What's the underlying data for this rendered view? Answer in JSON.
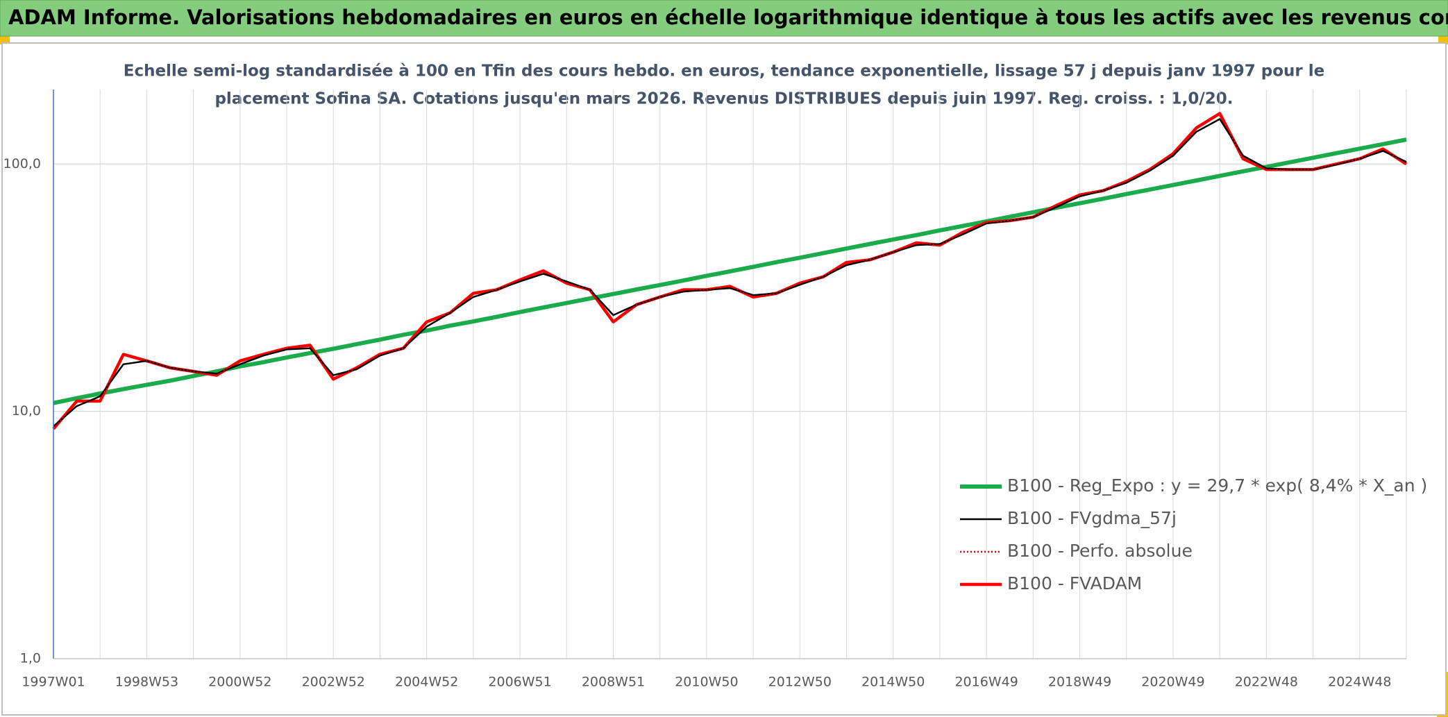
{
  "chart_data": {
    "type": "line",
    "title": "ADAM Informe. Valorisations hebdomadaires en euros en échelle logarithmique identique à tous les actifs avec les revenus connus distribués",
    "subtitle": [
      "Echelle semi-log standardisée à 100 en Tfin des cours hebdo. en euros, tendance exponentielle, lissage 57 j depuis janv 1997 pour le",
      "placement Sofina SA. Cotations jusqu'en mars 2026. Revenus DISTRIBUES depuis juin 1997. Reg. croiss. : 1,0/20."
    ],
    "categories": [
      "1997W01",
      null,
      null,
      null,
      "1998W53",
      null,
      null,
      null,
      "2000W52",
      null,
      null,
      null,
      "2002W52",
      null,
      null,
      null,
      "2004W52",
      null,
      null,
      null,
      "2006W51",
      null,
      null,
      null,
      "2008W51",
      null,
      null,
      null,
      "2010W50",
      null,
      null,
      null,
      "2012W50",
      null,
      null,
      null,
      "2014W50",
      null,
      null,
      null,
      "2016W49",
      null,
      null,
      null,
      "2018W49",
      null,
      null,
      null,
      "2020W49",
      null,
      null,
      null,
      "2022W48",
      null,
      null,
      null,
      "2024W48",
      null,
      null
    ],
    "series": [
      {
        "name": "B100 - Reg_Expo : y = 29,7 * exp( 8,4% *  X_an )",
        "color": "#1aab4b",
        "line_style": "solid",
        "values": [
          10.8,
          11.3,
          11.8,
          12.3,
          12.8,
          13.3,
          13.9,
          14.5,
          15.2,
          15.8,
          16.5,
          17.2,
          17.9,
          18.7,
          19.5,
          20.4,
          21.2,
          22.2,
          23.1,
          24.1,
          25.2,
          26.3,
          27.4,
          28.6,
          29.8,
          31.1,
          32.4,
          33.8,
          35.3,
          36.8,
          38.4,
          40.1,
          41.8,
          43.6,
          45.5,
          47.5,
          49.5,
          51.6,
          53.9,
          56.2,
          58.6,
          61.2,
          63.8,
          66.6,
          69.4,
          72.4,
          75.6,
          78.8,
          82.2,
          85.8,
          89.5,
          93.4,
          97.4,
          101.6,
          106.0,
          110.6,
          115.3,
          120.3,
          125.5
        ]
      },
      {
        "name": "B100 - FVgdma_57j",
        "color": "#000000",
        "line_style": "solid",
        "values": [
          8.7,
          10.5,
          11.5,
          15.5,
          16,
          15,
          14.5,
          14.2,
          15.5,
          16.8,
          17.8,
          18,
          14,
          14.8,
          16.8,
          18,
          22,
          25,
          29,
          31,
          33.5,
          36,
          33.5,
          31,
          24.5,
          27,
          29,
          30.5,
          31,
          31.5,
          29.5,
          30,
          32.5,
          35,
          39,
          41,
          44,
          47,
          47.5,
          52,
          57.5,
          59,
          61,
          67,
          74,
          78,
          84,
          94,
          108,
          135,
          152,
          108,
          96,
          95,
          95,
          99.5,
          105,
          113,
          102
        ]
      },
      {
        "name": "B100 - Perfo. absolue",
        "color": "#e00000",
        "line_style": "dotted",
        "values": [
          8.5,
          11,
          11,
          17,
          16,
          15,
          14.5,
          14,
          16,
          17,
          18,
          18.5,
          13.5,
          15,
          17,
          18,
          23,
          25,
          30,
          31,
          34,
          37,
          33,
          31,
          23,
          27,
          29,
          31,
          31,
          32,
          29,
          30,
          33,
          35,
          40,
          41,
          44,
          48,
          47,
          53,
          58,
          59,
          61,
          68,
          75,
          78,
          85,
          95,
          110,
          140,
          160,
          105,
          95,
          95,
          95,
          100,
          105,
          115,
          100
        ]
      },
      {
        "name": "B100 - FVADAM",
        "color": "#ff0000",
        "line_style": "solid",
        "values": [
          8.5,
          11,
          11,
          17,
          16,
          15,
          14.5,
          14,
          16,
          17,
          18,
          18.5,
          13.5,
          15,
          17,
          18,
          23,
          25,
          30,
          31,
          34,
          37,
          33,
          31,
          23,
          27,
          29,
          31,
          31,
          32,
          29,
          30,
          33,
          35,
          40,
          41,
          44,
          48,
          47,
          53,
          58,
          59,
          61,
          68,
          75,
          78,
          85,
          95,
          110,
          140,
          160,
          105,
          95,
          95,
          95,
          100,
          105,
          115,
          100
        ]
      }
    ],
    "log_scale": true,
    "ylim": [
      1,
      200
    ],
    "yticks": [
      {
        "value": 1,
        "label": "1,0"
      },
      {
        "value": 10,
        "label": "10,0"
      },
      {
        "value": 100,
        "label": "100,0"
      }
    ],
    "grid": true,
    "legend": "right"
  }
}
